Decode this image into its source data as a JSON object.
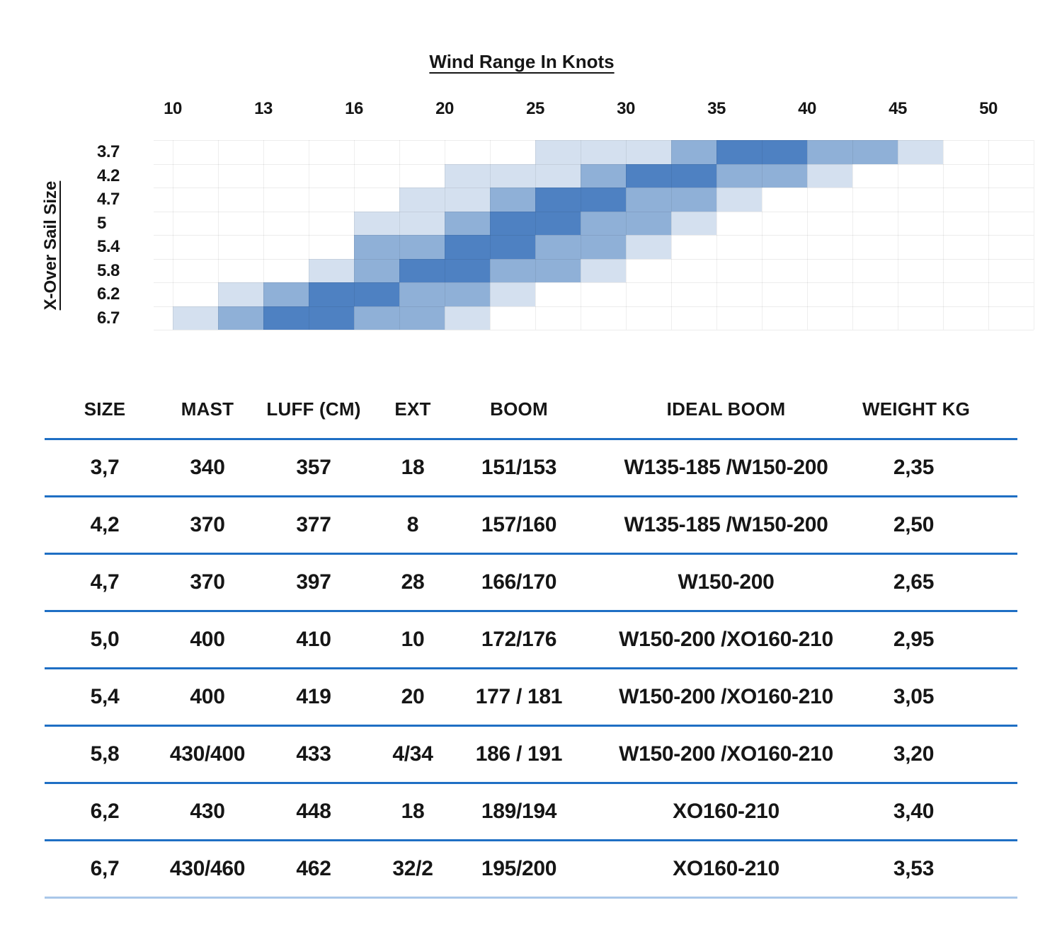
{
  "chart_data": [
    {
      "type": "heatmap",
      "title": "Wind Range In Knots",
      "ylabel": "X-Over Sail Size",
      "x_ticks": [
        "10",
        "13",
        "16",
        "20",
        "25",
        "30",
        "35",
        "40",
        "45",
        "50"
      ],
      "col_boundaries": [
        10,
        11.5,
        13,
        14.5,
        16,
        18,
        20,
        22.5,
        25,
        27.5,
        30,
        32.5,
        35,
        37.5,
        40,
        42.5,
        45,
        47.5,
        50
      ],
      "levels": {
        "light": "#d4e0ef",
        "medium": "#8fb0d7",
        "dark": "#4e81c2"
      },
      "grid_on": true,
      "series": [
        {
          "name": "3.7",
          "segments": [
            {
              "from": 25,
              "to": 32.5,
              "level": "light"
            },
            {
              "from": 32.5,
              "to": 35,
              "level": "medium"
            },
            {
              "from": 35,
              "to": 40,
              "level": "dark"
            },
            {
              "from": 40,
              "to": 45,
              "level": "medium"
            },
            {
              "from": 45,
              "to": 47.5,
              "level": "light"
            }
          ]
        },
        {
          "name": "4.2",
          "segments": [
            {
              "from": 20,
              "to": 27.5,
              "level": "light"
            },
            {
              "from": 27.5,
              "to": 30,
              "level": "medium"
            },
            {
              "from": 30,
              "to": 35,
              "level": "dark"
            },
            {
              "from": 35,
              "to": 40,
              "level": "medium"
            },
            {
              "from": 40,
              "to": 42.5,
              "level": "light"
            }
          ]
        },
        {
          "name": "4.7",
          "segments": [
            {
              "from": 18,
              "to": 22.5,
              "level": "light"
            },
            {
              "from": 22.5,
              "to": 25,
              "level": "medium"
            },
            {
              "from": 25,
              "to": 30,
              "level": "dark"
            },
            {
              "from": 30,
              "to": 35,
              "level": "medium"
            },
            {
              "from": 35,
              "to": 37.5,
              "level": "light"
            }
          ]
        },
        {
          "name": "5",
          "segments": [
            {
              "from": 16,
              "to": 20,
              "level": "light"
            },
            {
              "from": 20,
              "to": 22.5,
              "level": "medium"
            },
            {
              "from": 22.5,
              "to": 27.5,
              "level": "dark"
            },
            {
              "from": 27.5,
              "to": 32.5,
              "level": "medium"
            },
            {
              "from": 32.5,
              "to": 35,
              "level": "light"
            }
          ]
        },
        {
          "name": "5.4",
          "segments": [
            {
              "from": 16,
              "to": 20,
              "level": "medium"
            },
            {
              "from": 20,
              "to": 25,
              "level": "dark"
            },
            {
              "from": 25,
              "to": 30,
              "level": "medium"
            },
            {
              "from": 30,
              "to": 32.5,
              "level": "light"
            }
          ]
        },
        {
          "name": "5.8",
          "segments": [
            {
              "from": 14.5,
              "to": 16,
              "level": "light"
            },
            {
              "from": 16,
              "to": 18,
              "level": "medium"
            },
            {
              "from": 18,
              "to": 22.5,
              "level": "dark"
            },
            {
              "from": 22.5,
              "to": 27.5,
              "level": "medium"
            },
            {
              "from": 27.5,
              "to": 30,
              "level": "light"
            }
          ]
        },
        {
          "name": "6.2",
          "segments": [
            {
              "from": 11.5,
              "to": 13,
              "level": "light"
            },
            {
              "from": 13,
              "to": 14.5,
              "level": "medium"
            },
            {
              "from": 14.5,
              "to": 18,
              "level": "dark"
            },
            {
              "from": 18,
              "to": 22.5,
              "level": "medium"
            },
            {
              "from": 22.5,
              "to": 25,
              "level": "light"
            }
          ]
        },
        {
          "name": "6.7",
          "segments": [
            {
              "from": 10,
              "to": 11.5,
              "level": "light"
            },
            {
              "from": 11.5,
              "to": 13,
              "level": "medium"
            },
            {
              "from": 13,
              "to": 16,
              "level": "dark"
            },
            {
              "from": 16,
              "to": 20,
              "level": "medium"
            },
            {
              "from": 20,
              "to": 22.5,
              "level": "light"
            }
          ]
        }
      ]
    },
    {
      "type": "table",
      "columns": [
        "SIZE",
        "MAST",
        "LUFF (CM)",
        "EXT",
        "BOOM",
        "IDEAL BOOM",
        "WEIGHT KG"
      ],
      "rows": [
        [
          "3,7",
          "340",
          "357",
          "18",
          "151/153",
          "W135-185 /W150-200",
          "2,35"
        ],
        [
          "4,2",
          "370",
          "377",
          "8",
          "157/160",
          "W135-185 /W150-200",
          "2,50"
        ],
        [
          "4,7",
          "370",
          "397",
          "28",
          "166/170",
          "W150-200",
          "2,65"
        ],
        [
          "5,0",
          "400",
          "410",
          "10",
          "172/176",
          "W150-200 /XO160-210",
          "2,95"
        ],
        [
          "5,4",
          "400",
          "419",
          "20",
          "177 / 181",
          "W150-200 /XO160-210",
          "3,05"
        ],
        [
          "5,8",
          "430/400",
          "433",
          "4/34",
          "186 / 191",
          "W150-200 /XO160-210",
          "3,20"
        ],
        [
          "6,2",
          "430",
          "448",
          "18",
          "189/194",
          "XO160-210",
          "3,40"
        ],
        [
          "6,7",
          "430/460",
          "462",
          "32/2",
          "195/200",
          "XO160-210",
          "3,53"
        ]
      ],
      "divider_color": "#1f6fc4",
      "last_divider_color": "#a9c7e9",
      "text_color": "#161616"
    }
  ]
}
